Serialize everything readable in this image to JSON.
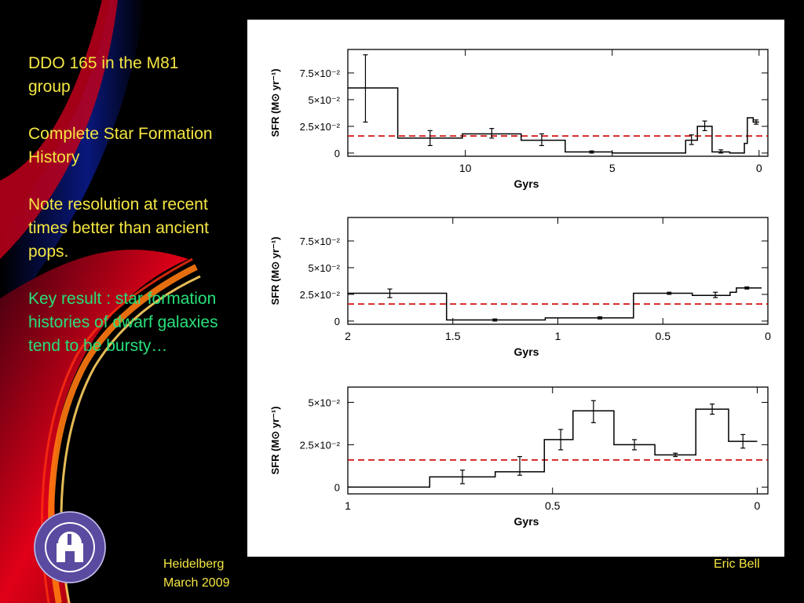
{
  "sidebar": {
    "para1": "DDO 165 in the M81 group",
    "para2": "Complete Star Formation History",
    "para3": "Note resolution at recent times better than ancient pops.",
    "para4": "Key result : star formation histories of dwarf galaxies tend to be bursty…"
  },
  "footer": {
    "place": "Heidelberg",
    "date": "March 2009",
    "author": "Eric Bell"
  },
  "colors": {
    "text_yellow": "#f5e642",
    "text_green": "#27e07a",
    "dashed_line": "#cc0000"
  },
  "chart_data": [
    {
      "type": "line",
      "step": true,
      "xlabel": "Gyrs",
      "ylabel": "SFR (M⊙ yr⁻¹)",
      "xlim": [
        14,
        -0.3
      ],
      "ylim": [
        -0.003,
        0.097
      ],
      "xticks": [
        {
          "v": 10,
          "t": "10"
        },
        {
          "v": 5,
          "t": "5"
        },
        {
          "v": 0,
          "t": "0"
        }
      ],
      "yticks": [
        {
          "v": 0,
          "t": "0"
        },
        {
          "v": 0.025,
          "t": "2.5×10⁻²"
        },
        {
          "v": 0.05,
          "t": "5×10⁻²"
        },
        {
          "v": 0.075,
          "t": "7.5×10⁻²"
        }
      ],
      "reference_line": 0.016,
      "steps": [
        {
          "x0": 14,
          "x1": 12.3,
          "y": 0.061
        },
        {
          "x0": 12.3,
          "x1": 10.1,
          "y": 0.014
        },
        {
          "x0": 10.1,
          "x1": 8.1,
          "y": 0.018
        },
        {
          "x0": 8.1,
          "x1": 6.6,
          "y": 0.012
        },
        {
          "x0": 6.6,
          "x1": 5.0,
          "y": 0.001
        },
        {
          "x0": 5.0,
          "x1": 2.5,
          "y": 0.0
        },
        {
          "x0": 2.5,
          "x1": 2.1,
          "y": 0.012
        },
        {
          "x0": 2.1,
          "x1": 1.6,
          "y": 0.025
        },
        {
          "x0": 1.6,
          "x1": 1.0,
          "y": 0.001
        },
        {
          "x0": 1.0,
          "x1": 0.5,
          "y": 0.0
        },
        {
          "x0": 0.5,
          "x1": 0.4,
          "y": 0.009
        },
        {
          "x0": 0.4,
          "x1": 0.2,
          "y": 0.033
        },
        {
          "x0": 0.2,
          "x1": 0.0,
          "y": 0.029
        }
      ],
      "errors": [
        {
          "x": 13.4,
          "y": 0.061,
          "lo": 0.029,
          "hi": 0.092
        },
        {
          "x": 11.2,
          "y": 0.014,
          "lo": 0.007,
          "hi": 0.021
        },
        {
          "x": 9.1,
          "y": 0.018,
          "lo": 0.014,
          "hi": 0.023
        },
        {
          "x": 7.4,
          "y": 0.012,
          "lo": 0.007,
          "hi": 0.018
        },
        {
          "x": 5.7,
          "y": 0.001,
          "lo": 0.0,
          "hi": 0.002
        },
        {
          "x": 2.3,
          "y": 0.012,
          "lo": 0.008,
          "hi": 0.017
        },
        {
          "x": 1.85,
          "y": 0.025,
          "lo": 0.021,
          "hi": 0.03
        },
        {
          "x": 1.3,
          "y": 0.001,
          "lo": 0.0,
          "hi": 0.003
        },
        {
          "x": 0.1,
          "y": 0.029,
          "lo": 0.027,
          "hi": 0.031
        }
      ]
    },
    {
      "type": "line",
      "step": true,
      "xlabel": "Gyrs",
      "ylabel": "SFR (M⊙ yr⁻¹)",
      "xlim": [
        2,
        0
      ],
      "ylim": [
        -0.003,
        0.097
      ],
      "xticks": [
        {
          "v": 2,
          "t": "2"
        },
        {
          "v": 1.5,
          "t": "1.5"
        },
        {
          "v": 1,
          "t": "1"
        },
        {
          "v": 0.5,
          "t": "0.5"
        },
        {
          "v": 0,
          "t": "0"
        }
      ],
      "yticks": [
        {
          "v": 0,
          "t": "0"
        },
        {
          "v": 0.025,
          "t": "2.5×10⁻²"
        },
        {
          "v": 0.05,
          "t": "5×10⁻²"
        },
        {
          "v": 0.075,
          "t": "7.5×10⁻²"
        }
      ],
      "reference_line": 0.016,
      "steps": [
        {
          "x0": 2.0,
          "x1": 1.53,
          "y": 0.026
        },
        {
          "x0": 1.53,
          "x1": 1.06,
          "y": 0.001
        },
        {
          "x0": 1.06,
          "x1": 0.64,
          "y": 0.003
        },
        {
          "x0": 0.64,
          "x1": 0.36,
          "y": 0.026
        },
        {
          "x0": 0.36,
          "x1": 0.18,
          "y": 0.024
        },
        {
          "x0": 0.18,
          "x1": 0.15,
          "y": 0.027
        },
        {
          "x0": 0.15,
          "x1": 0.03,
          "y": 0.031
        }
      ],
      "errors": [
        {
          "x": 1.8,
          "y": 0.026,
          "lo": 0.022,
          "hi": 0.03
        },
        {
          "x": 1.3,
          "y": 0.001,
          "lo": 0.0,
          "hi": 0.002
        },
        {
          "x": 0.8,
          "y": 0.003,
          "lo": 0.002,
          "hi": 0.004
        },
        {
          "x": 0.47,
          "y": 0.026,
          "lo": 0.025,
          "hi": 0.027
        },
        {
          "x": 0.25,
          "y": 0.024,
          "lo": 0.022,
          "hi": 0.027
        },
        {
          "x": 0.1,
          "y": 0.031,
          "lo": 0.03,
          "hi": 0.032
        }
      ]
    },
    {
      "type": "line",
      "step": true,
      "xlabel": "Gyrs",
      "ylabel": "SFR (M⊙ yr⁻¹)",
      "xlim": [
        1,
        -0.026
      ],
      "ylim": [
        -0.004,
        0.059
      ],
      "xticks": [
        {
          "v": 1,
          "t": "1"
        },
        {
          "v": 0.5,
          "t": "0.5"
        },
        {
          "v": 0,
          "t": "0"
        }
      ],
      "yticks": [
        {
          "v": 0,
          "t": "0"
        },
        {
          "v": 0.025,
          "t": "2.5×10⁻²"
        },
        {
          "v": 0.05,
          "t": "5×10⁻²"
        }
      ],
      "reference_line": 0.016,
      "steps": [
        {
          "x0": 1.0,
          "x1": 0.8,
          "y": 0.0
        },
        {
          "x0": 0.8,
          "x1": 0.64,
          "y": 0.006
        },
        {
          "x0": 0.64,
          "x1": 0.52,
          "y": 0.009
        },
        {
          "x0": 0.52,
          "x1": 0.45,
          "y": 0.028
        },
        {
          "x0": 0.45,
          "x1": 0.35,
          "y": 0.045
        },
        {
          "x0": 0.35,
          "x1": 0.25,
          "y": 0.025
        },
        {
          "x0": 0.25,
          "x1": 0.15,
          "y": 0.019
        },
        {
          "x0": 0.15,
          "x1": 0.07,
          "y": 0.046
        },
        {
          "x0": 0.07,
          "x1": 0.0,
          "y": 0.027
        }
      ],
      "errors": [
        {
          "x": 0.72,
          "y": 0.006,
          "lo": 0.002,
          "hi": 0.01
        },
        {
          "x": 0.58,
          "y": 0.009,
          "lo": 0.007,
          "hi": 0.018
        },
        {
          "x": 0.48,
          "y": 0.028,
          "lo": 0.022,
          "hi": 0.034
        },
        {
          "x": 0.4,
          "y": 0.045,
          "lo": 0.038,
          "hi": 0.051
        },
        {
          "x": 0.3,
          "y": 0.025,
          "lo": 0.022,
          "hi": 0.028
        },
        {
          "x": 0.2,
          "y": 0.019,
          "lo": 0.018,
          "hi": 0.02
        },
        {
          "x": 0.11,
          "y": 0.046,
          "lo": 0.043,
          "hi": 0.049
        },
        {
          "x": 0.035,
          "y": 0.027,
          "lo": 0.023,
          "hi": 0.031
        }
      ]
    }
  ]
}
